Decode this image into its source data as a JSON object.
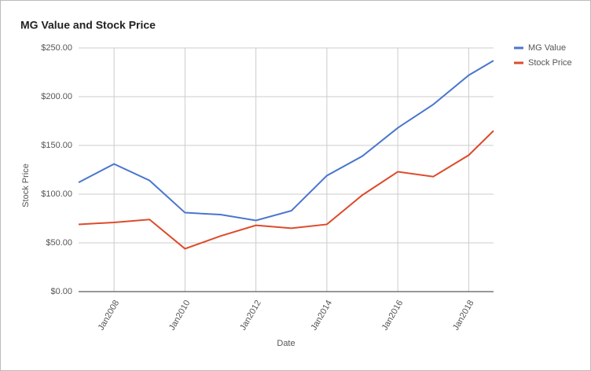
{
  "chart_data": {
    "type": "line",
    "title": "MG Value and Stock Price",
    "x_label": "Date",
    "y_label": "Stock Price",
    "x": [
      2007,
      2008,
      2009,
      2010,
      2011,
      2012,
      2013,
      2014,
      2015,
      2016,
      2017,
      2018,
      2018.7
    ],
    "series": [
      {
        "name": "MG Value",
        "color": "#4a76cd",
        "values": [
          112,
          131,
          114,
          81,
          79,
          73,
          83,
          119,
          139,
          168,
          192,
          222,
          237
        ]
      },
      {
        "name": "Stock Price",
        "color": "#dd4b2b",
        "values": [
          69,
          71,
          74,
          44,
          57,
          68,
          65,
          69,
          99,
          123,
          118,
          140,
          165
        ]
      }
    ],
    "xlim": [
      2007,
      2018.7
    ],
    "xticks": [
      {
        "value": 2008,
        "label": "Jan2008"
      },
      {
        "value": 2010,
        "label": "Jan2010"
      },
      {
        "value": 2012,
        "label": "Jan2012"
      },
      {
        "value": 2014,
        "label": "Jan2014"
      },
      {
        "value": 2016,
        "label": "Jan2016"
      },
      {
        "value": 2018,
        "label": "Jan2018"
      }
    ],
    "ylim": [
      0,
      250
    ],
    "yticks": [
      {
        "value": 0,
        "label": "$0.00"
      },
      {
        "value": 50,
        "label": "$50.00"
      },
      {
        "value": 100,
        "label": "$100.00"
      },
      {
        "value": 150,
        "label": "$150.00"
      },
      {
        "value": 200,
        "label": "$200.00"
      },
      {
        "value": 250,
        "label": "$250.00"
      }
    ],
    "grid": true,
    "legend": "top-right"
  }
}
